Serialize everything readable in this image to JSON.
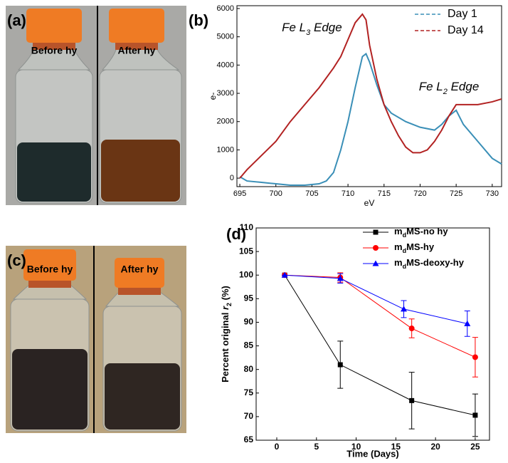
{
  "photos": [
    {
      "label": "(a)",
      "left": "Before hy",
      "right": "After hy"
    },
    {
      "label": "(c)",
      "left": "Before hy",
      "right": "After hy"
    }
  ],
  "chart_data": [
    {
      "type": "line",
      "label": "(b)",
      "xlabel": "eV",
      "ylabel": "e-",
      "xlim": [
        694.6,
        731.3
      ],
      "ylim": [
        -300,
        6100
      ],
      "xticks": [
        695,
        700,
        705,
        710,
        715,
        720,
        725,
        730
      ],
      "yticks": [
        0,
        1000,
        2000,
        3000,
        4000,
        5000,
        6000
      ],
      "legend": "top-right",
      "legend_style": "dashed",
      "annotations": [
        {
          "parts": [
            "Fe L",
            "3",
            " Edge"
          ],
          "x": 705,
          "y": 5300
        },
        {
          "parts": [
            "Fe L",
            "2",
            " Edge"
          ],
          "x": 724,
          "y": 3200
        }
      ],
      "series": [
        {
          "name": "Day 1",
          "color": "#3a8fb7",
          "x": [
            695,
            696,
            698,
            700,
            702,
            704,
            706,
            707,
            708,
            709,
            710,
            711,
            712,
            712.5,
            713,
            714,
            715,
            716,
            718,
            720,
            722,
            723,
            724,
            725,
            726,
            728,
            730,
            731.3
          ],
          "values": [
            50,
            -100,
            -150,
            -200,
            -250,
            -250,
            -200,
            -100,
            200,
            1000,
            2000,
            3200,
            4300,
            4400,
            4100,
            3300,
            2600,
            2300,
            2000,
            1800,
            1700,
            1900,
            2200,
            2400,
            1900,
            1300,
            700,
            500
          ]
        },
        {
          "name": "Day 14",
          "color": "#b22222",
          "x": [
            695,
            696,
            698,
            700,
            702,
            704,
            706,
            708,
            709,
            710,
            711,
            712,
            712.5,
            713,
            714,
            715,
            716,
            717,
            718,
            719,
            720,
            721,
            722,
            723,
            724,
            725,
            726,
            728,
            730,
            731.3
          ],
          "values": [
            0,
            300,
            800,
            1300,
            2000,
            2600,
            3200,
            3900,
            4300,
            4900,
            5500,
            5800,
            5600,
            4700,
            3500,
            2600,
            2000,
            1500,
            1100,
            900,
            900,
            1000,
            1300,
            1700,
            2200,
            2600,
            2600,
            2600,
            2700,
            2800
          ]
        }
      ]
    },
    {
      "type": "errorline",
      "label": "(d)",
      "xlabel": "Time (Days)",
      "ylabel": [
        "Percent original ",
        "r",
        "2",
        " (%)"
      ],
      "xlim": [
        -2.6,
        26.8
      ],
      "ylim": [
        65,
        110
      ],
      "xticks": [
        0,
        5,
        10,
        15,
        20,
        25
      ],
      "yticks": [
        65,
        70,
        75,
        80,
        85,
        90,
        95,
        100,
        105,
        110
      ],
      "legend": "top-right",
      "series": [
        {
          "name": [
            "m",
            "d",
            "MS-no hy"
          ],
          "color": "#000000",
          "marker": "square",
          "x": [
            1,
            8,
            17,
            25
          ],
          "values": [
            100,
            81,
            73.4,
            70.3
          ],
          "errors": [
            0,
            5,
            6,
            4.5
          ]
        },
        {
          "name": [
            "m",
            "d",
            "MS-hy"
          ],
          "color": "#ff0000",
          "marker": "circle",
          "x": [
            1,
            8,
            17,
            25
          ],
          "values": [
            100,
            99.5,
            88.7,
            82.6
          ],
          "errors": [
            0,
            1,
            2,
            4.2
          ]
        },
        {
          "name": [
            "m",
            "d",
            "MS-deoxy-hy"
          ],
          "color": "#0000ff",
          "marker": "triangle",
          "x": [
            1,
            8,
            16,
            24
          ],
          "values": [
            100,
            99.3,
            92.8,
            89.7
          ],
          "errors": [
            0,
            1,
            1.8,
            2.7
          ]
        }
      ]
    }
  ]
}
